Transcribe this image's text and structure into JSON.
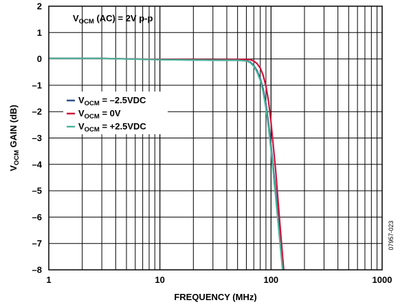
{
  "chart_data": {
    "type": "line",
    "xscale": "log",
    "xlim": [
      1,
      1000
    ],
    "ylim": [
      -8,
      2
    ],
    "grid": true,
    "xlabel": "FREQUENCY (MHz)",
    "ylabel": {
      "prefix": "V",
      "sub": "OCM",
      "suffix": " GAIN (dB)"
    },
    "annotation": {
      "prefix": "V",
      "sub": "OCM",
      "suffix": " (AC) = 2V p-p"
    },
    "figure_id": "07957-023",
    "x_ticks": [
      {
        "value": 1,
        "label": "1"
      },
      {
        "value": 10,
        "label": "10"
      },
      {
        "value": 100,
        "label": "100"
      },
      {
        "value": 1000,
        "label": "1000"
      }
    ],
    "y_ticks": [
      {
        "value": 2,
        "label": "2"
      },
      {
        "value": 1,
        "label": "1"
      },
      {
        "value": 0,
        "label": "0"
      },
      {
        "value": -1,
        "label": "–1"
      },
      {
        "value": -2,
        "label": "–2"
      },
      {
        "value": -3,
        "label": "–3"
      },
      {
        "value": -4,
        "label": "–4"
      },
      {
        "value": -5,
        "label": "–5"
      },
      {
        "value": -6,
        "label": "–6"
      },
      {
        "value": -7,
        "label": "–7"
      },
      {
        "value": -8,
        "label": "–8"
      }
    ],
    "legend_position": "middle-left",
    "series": [
      {
        "legend_prefix": "V",
        "legend_sub": "OCM",
        "legend_suffix": " = –2.5VDC",
        "color": "#2f4f8a",
        "x": [
          1,
          3,
          10,
          30,
          50,
          60,
          65,
          70,
          75,
          80,
          85,
          90,
          95,
          100,
          110,
          120,
          128
        ],
        "y": [
          0.02,
          0.02,
          -0.03,
          -0.05,
          -0.05,
          -0.07,
          -0.12,
          -0.25,
          -0.45,
          -0.75,
          -1.15,
          -1.7,
          -2.45,
          -3.3,
          -5.0,
          -6.7,
          -8.0
        ]
      },
      {
        "legend_prefix": "V",
        "legend_sub": "OCM",
        "legend_suffix": " = 0V",
        "color": "#d0103a",
        "x": [
          1,
          3,
          10,
          30,
          50,
          60,
          65,
          70,
          75,
          80,
          85,
          90,
          95,
          100,
          110,
          120,
          130
        ],
        "y": [
          0.02,
          0.02,
          -0.02,
          -0.03,
          -0.02,
          -0.02,
          -0.03,
          -0.08,
          -0.18,
          -0.35,
          -0.62,
          -1.02,
          -1.6,
          -2.4,
          -4.2,
          -6.2,
          -8.0
        ]
      },
      {
        "legend_prefix": "V",
        "legend_sub": "OCM",
        "legend_suffix": " = +2.5VDC",
        "color": "#4bb59b",
        "x": [
          1,
          3,
          10,
          30,
          50,
          60,
          65,
          70,
          75,
          80,
          85,
          90,
          95,
          100,
          110,
          120,
          127
        ],
        "y": [
          0.02,
          0.02,
          -0.03,
          -0.05,
          -0.05,
          -0.08,
          -0.14,
          -0.28,
          -0.5,
          -0.82,
          -1.25,
          -1.85,
          -2.6,
          -3.45,
          -5.2,
          -6.9,
          -8.0
        ]
      }
    ]
  }
}
